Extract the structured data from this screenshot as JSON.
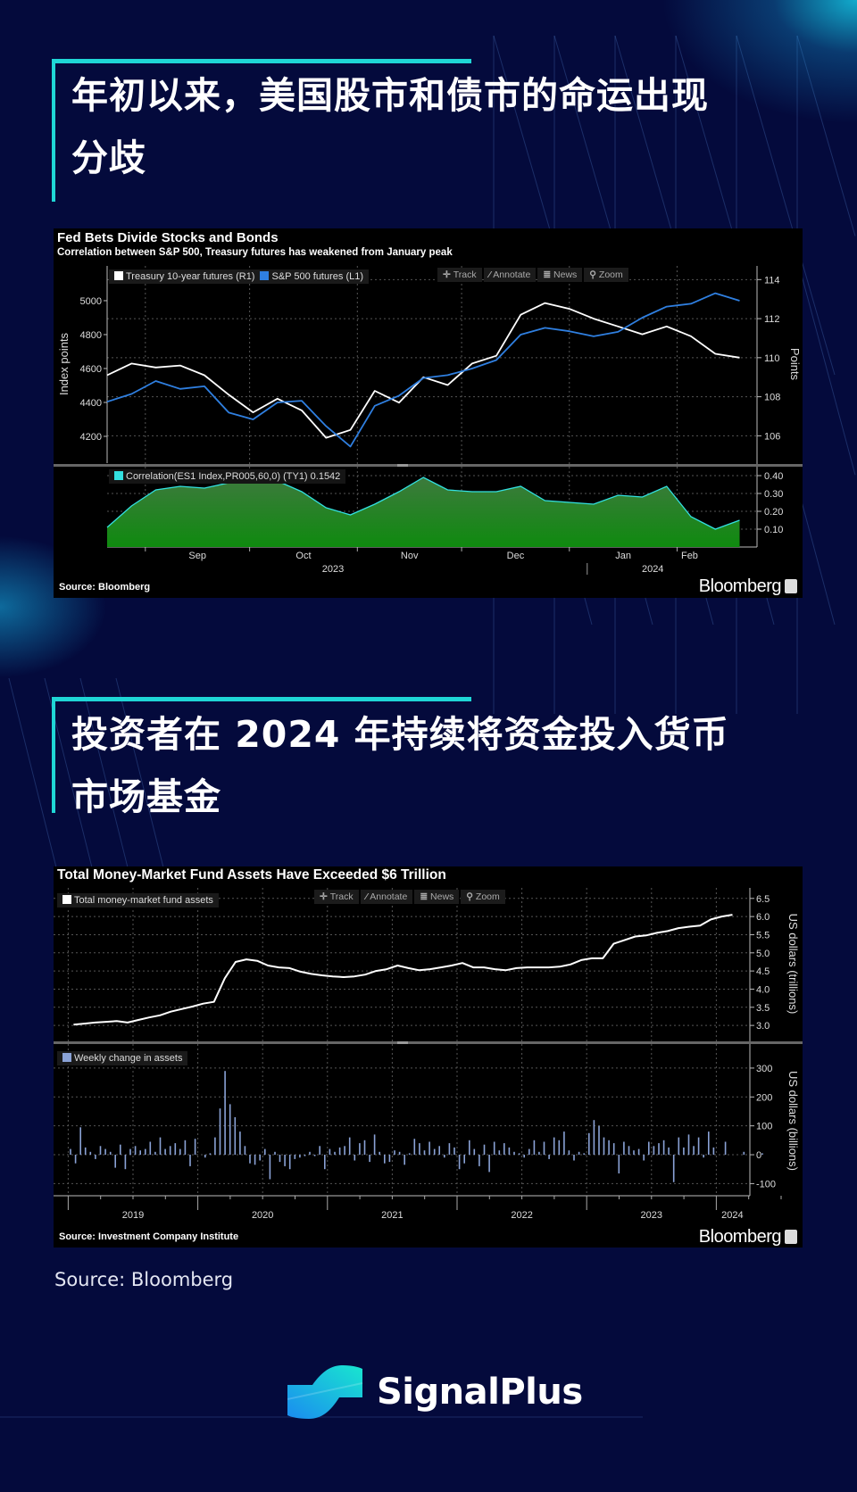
{
  "colors": {
    "background": "#040a3c",
    "accent": "#1fd6d6",
    "treasury": "#ffffff",
    "sp500": "#2f7fe0",
    "correlation_line": "#33e0e0",
    "correlation_fill": "#1f8a22",
    "mmf_line": "#ffffff",
    "mmf_bars": "#8aa2d6"
  },
  "section1": {
    "title_line1": "年初以来，美国股市和债市的命运出现",
    "title_line2": "分歧"
  },
  "section2": {
    "title_line1": "投资者在 2024 年持续将资金投入货币",
    "title_line2": "市场基金"
  },
  "toolbar": {
    "track": "Track",
    "annotate": "Annotate",
    "news": "News",
    "zoom": "Zoom",
    "icons": [
      "crosshair-icon",
      "pencil-icon",
      "news-icon",
      "magnifier-icon"
    ]
  },
  "footer": {
    "source": "Source: Bloomberg",
    "brand": "SignalPlus"
  },
  "chart_data": [
    {
      "type": "line",
      "title": "Fed Bets Divide Stocks and Bonds",
      "subtitle": "Correlation between S&P 500, Treasury futures has weakened from January peak",
      "source": "Source: Bloomberg",
      "brand": "Bloomberg",
      "x": [
        "2023-08-21",
        "2023-08-28",
        "2023-09-04",
        "2023-09-11",
        "2023-09-18",
        "2023-09-25",
        "2023-10-02",
        "2023-10-09",
        "2023-10-16",
        "2023-10-23",
        "2023-10-30",
        "2023-11-06",
        "2023-11-13",
        "2023-11-20",
        "2023-11-27",
        "2023-12-04",
        "2023-12-11",
        "2023-12-18",
        "2023-12-25",
        "2024-01-01",
        "2024-01-08",
        "2024-01-15",
        "2024-01-22",
        "2024-01-29",
        "2024-02-05",
        "2024-02-12",
        "2024-02-19"
      ],
      "xlim": [
        "2023-08-21",
        "2024-02-24"
      ],
      "month_labels": [
        "Sep",
        "Oct",
        "Nov",
        "Dec",
        "Jan",
        "Feb"
      ],
      "month_ticks": [
        "2023-09-01",
        "2023-10-01",
        "2023-11-01",
        "2023-12-01",
        "2024-01-01",
        "2024-02-01"
      ],
      "year_labels": [
        {
          "label": "2023",
          "at": "2023-10-25"
        },
        {
          "label": "2024",
          "at": "2024-01-25"
        }
      ],
      "year_divider": "2024-01-01",
      "upper": {
        "ylabel_left": "Index points",
        "ylabel_right": "Points",
        "ylim_left": [
          4042,
          5205
        ],
        "ylim_right": [
          104.6,
          114.7
        ],
        "yticks_left": [
          4200,
          4400,
          4600,
          4800,
          5000
        ],
        "yticks_right": [
          106,
          108,
          110,
          112,
          114
        ],
        "grid": true,
        "series": [
          {
            "name": "Treasury 10-year futures  (R1)",
            "axis": "right",
            "color": "#ffffff",
            "values": [
              109.1,
              109.7,
              109.5,
              109.6,
              109.1,
              108.1,
              107.2,
              107.9,
              107.3,
              105.9,
              106.3,
              108.3,
              107.7,
              109.0,
              108.6,
              109.7,
              110.1,
              112.2,
              112.8,
              112.5,
              112.0,
              111.6,
              111.2,
              111.6,
              111.1,
              110.2,
              110.0
            ]
          },
          {
            "name": "S&P 500 futures  (L1)",
            "axis": "left",
            "color": "#2f7fe0",
            "values": [
              4404,
              4450,
              4526,
              4480,
              4495,
              4340,
              4300,
              4400,
              4410,
              4260,
              4140,
              4380,
              4440,
              4544,
              4561,
              4600,
              4650,
              4800,
              4840,
              4820,
              4790,
              4816,
              4900,
              4965,
              4982,
              5044,
              5000
            ]
          }
        ]
      },
      "lower": {
        "type": "area",
        "ylim": [
          0.0,
          0.44
        ],
        "yticks": [
          0.1,
          0.2,
          0.3,
          0.4
        ],
        "ytick_labels": [
          "0.10",
          "0.20",
          "0.30",
          "0.40"
        ],
        "series": [
          {
            "name": "Correlation(ES1 Index,PR005,60,0) (TY1) 0.1542",
            "color": "#33e0e0",
            "values": [
              0.11,
              0.23,
              0.32,
              0.34,
              0.33,
              0.36,
              0.38,
              0.37,
              0.31,
              0.22,
              0.18,
              0.24,
              0.31,
              0.39,
              0.32,
              0.31,
              0.31,
              0.34,
              0.26,
              0.25,
              0.24,
              0.29,
              0.28,
              0.34,
              0.17,
              0.1,
              0.15
            ]
          }
        ]
      }
    },
    {
      "type": "line",
      "title": "Total Money-Market Fund Assets Have Exceeded $6 Trillion",
      "source": "Source: Investment Company Institute",
      "brand": "Bloomberg",
      "year_labels": [
        "2019",
        "2020",
        "2021",
        "2022",
        "2023",
        "2024"
      ],
      "upper": {
        "ylabel": "US dollars (trillions)",
        "ylim": [
          2.61,
          6.79
        ],
        "yticks": [
          3.0,
          3.5,
          4.0,
          4.5,
          5.0,
          5.5,
          6.0,
          6.5
        ],
        "ytick_labels": [
          "3.0",
          "3.5",
          "4.0",
          "4.5",
          "5.0",
          "5.5",
          "6.0",
          "6.5"
        ],
        "grid": true,
        "series": [
          {
            "name": "Total money-market fund assets",
            "color": "#ffffff",
            "frequency": "monthly",
            "by_year": [
              {
                "year": 2019,
                "values": [
                  3.02,
                  3.05,
                  3.08,
                  3.1,
                  3.12,
                  3.08,
                  3.15,
                  3.22,
                  3.28,
                  3.38,
                  3.45,
                  3.52
                ]
              },
              {
                "year": 2020,
                "values": [
                  3.6,
                  3.65,
                  4.3,
                  4.75,
                  4.82,
                  4.78,
                  4.65,
                  4.6,
                  4.58,
                  4.48,
                  4.42,
                  4.38
                ]
              },
              {
                "year": 2021,
                "values": [
                  4.35,
                  4.33,
                  4.35,
                  4.4,
                  4.5,
                  4.55,
                  4.65,
                  4.58,
                  4.52,
                  4.55,
                  4.6,
                  4.65
                ]
              },
              {
                "year": 2022,
                "values": [
                  4.72,
                  4.6,
                  4.6,
                  4.55,
                  4.52,
                  4.58,
                  4.6,
                  4.6,
                  4.6,
                  4.62,
                  4.68,
                  4.8
                ]
              },
              {
                "year": 2023,
                "values": [
                  4.85,
                  4.85,
                  5.25,
                  5.35,
                  5.45,
                  5.48,
                  5.55,
                  5.6,
                  5.68,
                  5.72,
                  5.75,
                  5.92
                ]
              },
              {
                "year": 2024,
                "values": [
                  6.0,
                  6.05
                ]
              }
            ]
          }
        ]
      },
      "lower": {
        "type": "bar",
        "ylabel": "US dollars (billions)",
        "ylim": [
          -142,
          377
        ],
        "yticks": [
          -100,
          0,
          100,
          200,
          300
        ],
        "ytick_labels": [
          "-100",
          "0",
          "100",
          "200",
          "300"
        ],
        "series": [
          {
            "name": "Weekly change in assets",
            "color": "#8aa2d6",
            "by_year": [
              {
                "year": 2019,
                "values": [
                  20,
                  -30,
                  95,
                  25,
                  10,
                  -15,
                  30,
                  20,
                  10,
                  -45,
                  35,
                  -50,
                  20,
                  30,
                  15,
                  20,
                  45,
                  10,
                  60,
                  20,
                  30,
                  40,
                  20,
                  50,
                  -40,
                  55
                ]
              },
              {
                "year": 2020,
                "values": [
                  0,
                  -10,
                  5,
                  60,
                  160,
                  290,
                  175,
                  130,
                  80,
                  30,
                  -30,
                  -35,
                  -20,
                  20,
                  -85,
                  10,
                  -25,
                  -40,
                  -50,
                  -15,
                  -10,
                  -5,
                  10,
                  -5,
                  30,
                  -50
                ]
              },
              {
                "year": 2021,
                "values": [
                  20,
                  10,
                  25,
                  30,
                  60,
                  -20,
                  40,
                  50,
                  -25,
                  70,
                  10,
                  -30,
                  -25,
                  15,
                  10,
                  -35,
                  5,
                  55,
                  40,
                  15,
                  45,
                  20,
                  30,
                  -10,
                  40,
                  25
                ]
              },
              {
                "year": 2022,
                "values": [
                  -50,
                  -30,
                  50,
                  20,
                  -40,
                  35,
                  -60,
                  45,
                  15,
                  40,
                  25,
                  10,
                  5,
                  -10,
                  20,
                  50,
                  10,
                  45,
                  -15,
                  60,
                  50,
                  80,
                  15,
                  -20,
                  10,
                  5
                ]
              },
              {
                "year": 2023,
                "values": [
                  75,
                  120,
                  100,
                  60,
                  50,
                  40,
                  -65,
                  45,
                  30,
                  15,
                  20,
                  -20,
                  45,
                  30,
                  40,
                  50,
                  25,
                  -95,
                  60,
                  25,
                  70,
                  30,
                  60,
                  -10,
                  80,
                  25
                ]
              },
              {
                "year": 2024,
                "values": [
                  45,
                  10,
                  5
                ]
              }
            ]
          }
        ]
      }
    }
  ]
}
